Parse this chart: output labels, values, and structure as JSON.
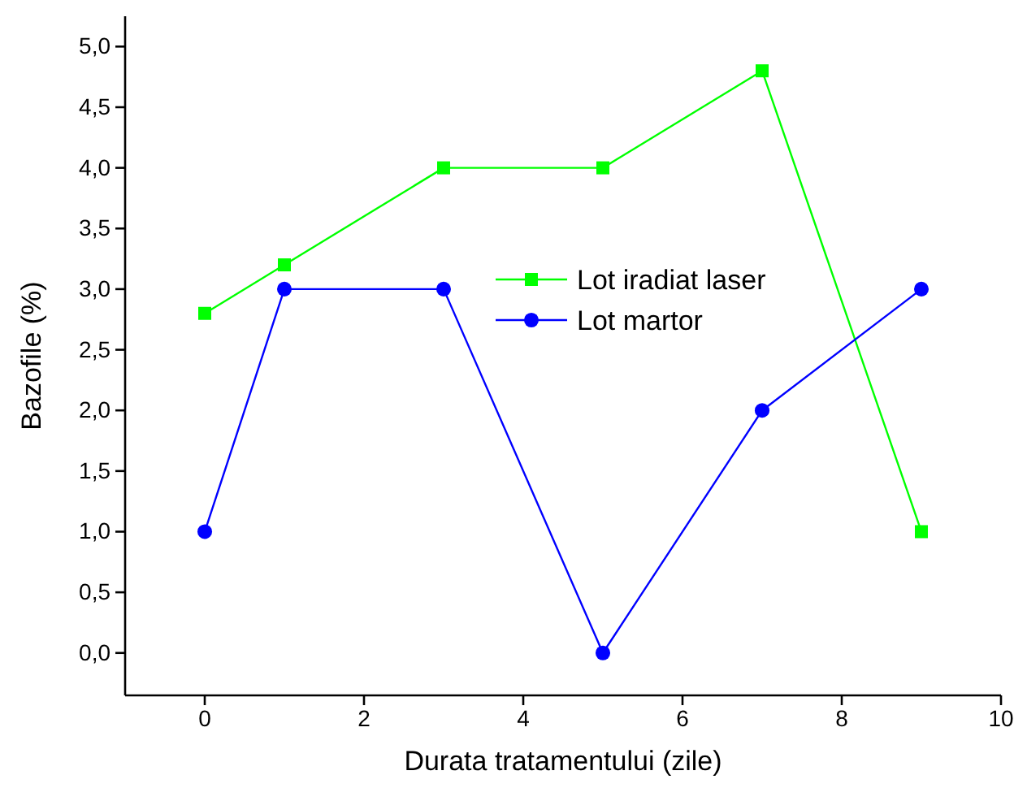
{
  "chart_data": {
    "type": "line",
    "xlabel": "Durata tratamentului (zile)",
    "ylabel": "Bazofile  (%)",
    "xlim": [
      -1,
      10
    ],
    "xticks": [
      0,
      2,
      4,
      6,
      8,
      10
    ],
    "ylim": [
      -0.35,
      5.25
    ],
    "yticks": [
      {
        "value": 0,
        "label": "0,0"
      },
      {
        "value": 0.5,
        "label": "0,5"
      },
      {
        "value": 1,
        "label": "1,0"
      },
      {
        "value": 1.5,
        "label": "1,5"
      },
      {
        "value": 2,
        "label": "2,0"
      },
      {
        "value": 2.5,
        "label": "2,5"
      },
      {
        "value": 3,
        "label": "3,0"
      },
      {
        "value": 3.5,
        "label": "3,5"
      },
      {
        "value": 4,
        "label": "4,0"
      },
      {
        "value": 4.5,
        "label": "4,5"
      },
      {
        "value": 5,
        "label": "5,0"
      }
    ],
    "x": [
      0,
      1,
      3,
      5,
      7,
      9
    ],
    "series": [
      {
        "name": "Lot iradiat laser",
        "color": "#00ff00",
        "marker": "square",
        "values": [
          2.8,
          3.2,
          4.0,
          4.0,
          4.8,
          1.0
        ]
      },
      {
        "name": "Lot martor",
        "color": "#0000ff",
        "marker": "circle",
        "values": [
          1,
          3,
          3,
          0,
          2,
          3
        ]
      }
    ],
    "legend": "center",
    "grid": false,
    "line_style": "solid"
  }
}
